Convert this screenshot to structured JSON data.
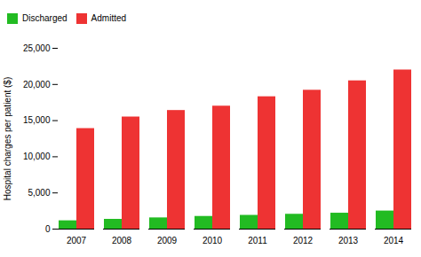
{
  "chart_data": {
    "type": "bar",
    "categories": [
      "2007",
      "2008",
      "2009",
      "2010",
      "2011",
      "2012",
      "2013",
      "2014"
    ],
    "series": [
      {
        "name": "Discharged",
        "color": "#22bb22",
        "values": [
          1150,
          1350,
          1550,
          1750,
          1900,
          2050,
          2200,
          2500
        ]
      },
      {
        "name": "Admitted",
        "color": "#ee3333",
        "values": [
          13900,
          15500,
          16400,
          17000,
          18300,
          19200,
          20500,
          22000
        ]
      }
    ],
    "ylabel": "Hospital charges per patient ($)",
    "ylim": [
      0,
      25000
    ],
    "yticks": [
      0,
      {
        "value": 5000,
        "label": "5,000"
      },
      {
        "value": 10000,
        "label": "10,000"
      },
      {
        "value": 15000,
        "label": "15,000"
      },
      {
        "value": 20000,
        "label": "20,000"
      },
      {
        "value": 25000,
        "label": "25,000"
      }
    ],
    "grid": false,
    "legend": "upper left"
  }
}
